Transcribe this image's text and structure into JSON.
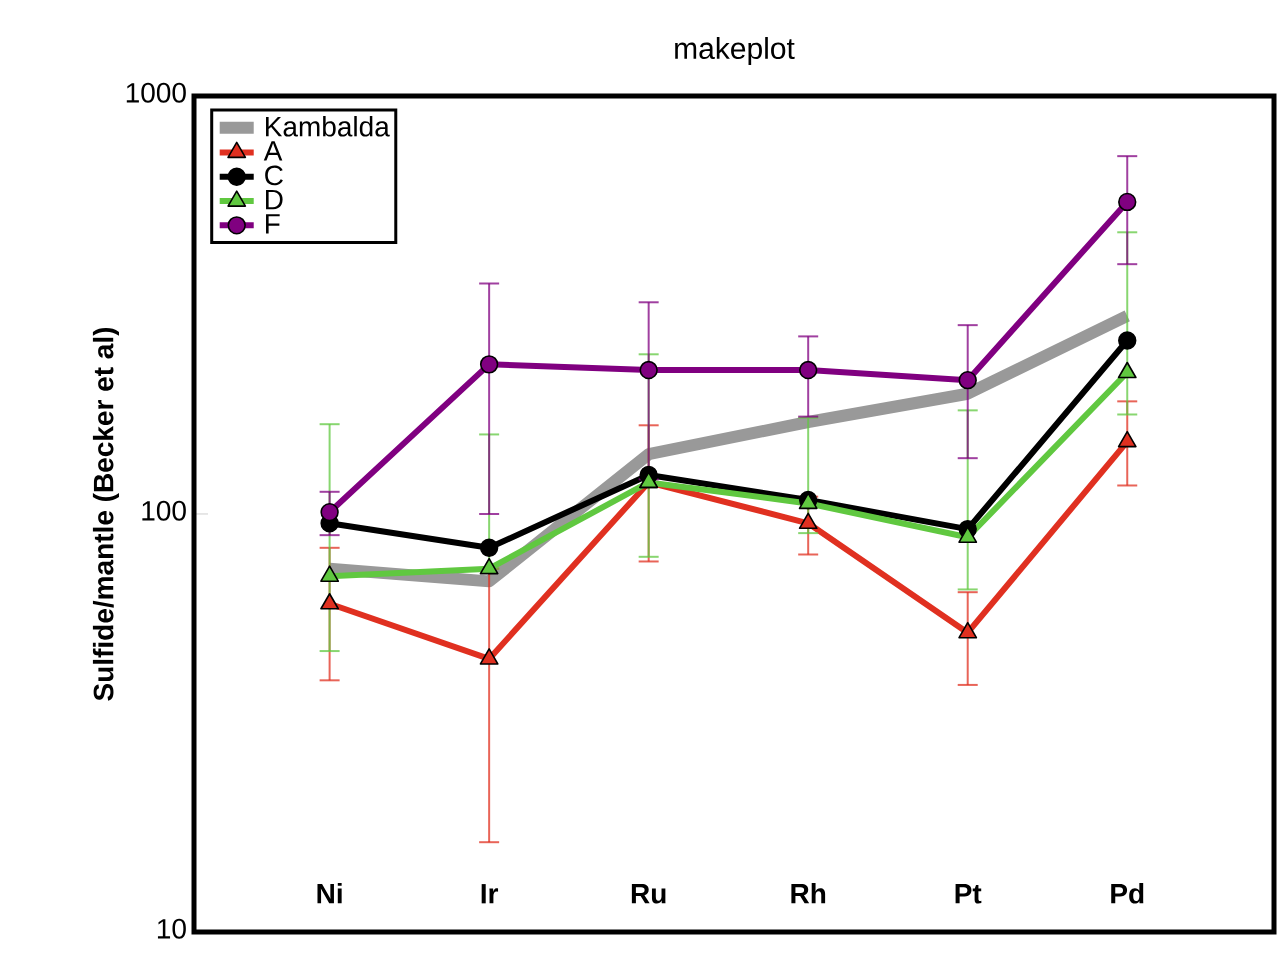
{
  "chart_data": {
    "type": "line",
    "title": "makeplot",
    "ylabel": "Sulfide/mantle (Becker et al)",
    "categories": [
      "Ni",
      "Ir",
      "Ru",
      "Rh",
      "Pt",
      "Pd"
    ],
    "log": "y",
    "ylim": [
      10,
      1000
    ],
    "yticks": [
      10,
      100,
      1000
    ],
    "grid": false,
    "legend": "top left",
    "series": [
      {
        "name": "Kambalda",
        "color": "#999999",
        "marker": "none",
        "values": [
          74,
          69,
          139,
          166,
          194,
          298
        ]
      },
      {
        "name": "A",
        "color": "#e03020",
        "marker": "triangle",
        "values": [
          61,
          45,
          119,
          95,
          52,
          149
        ],
        "errors": [
          [
            40,
            83
          ],
          [
            16.4,
            74
          ],
          [
            77,
            163
          ],
          [
            80,
            110
          ],
          [
            39,
            65
          ],
          [
            117,
            186
          ]
        ]
      },
      {
        "name": "C",
        "color": "#000000",
        "marker": "circle",
        "values": [
          95,
          83,
          124,
          108,
          92,
          260
        ]
      },
      {
        "name": "D",
        "color": "#60c840",
        "marker": "triangle",
        "values": [
          71,
          74,
          119,
          106,
          88,
          218
        ],
        "errors": [
          [
            47,
            164
          ],
          [
            74,
            155
          ],
          [
            79,
            241
          ],
          [
            90,
            170
          ],
          [
            66,
            177
          ],
          [
            173,
            472
          ]
        ]
      },
      {
        "name": "F",
        "color": "#800080",
        "marker": "circle",
        "values": [
          101,
          228,
          221,
          221,
          209,
          558
        ],
        "errors": [
          [
            89,
            113
          ],
          [
            100,
            356
          ],
          [
            121,
            321
          ],
          [
            171,
            266
          ],
          [
            136,
            283
          ],
          [
            396,
            718
          ]
        ]
      }
    ]
  }
}
